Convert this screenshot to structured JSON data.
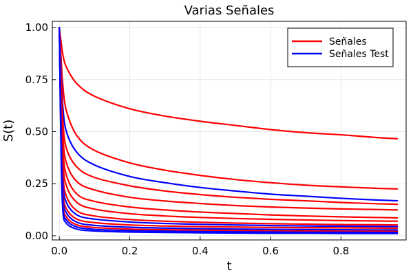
{
  "chart_data": {
    "type": "line",
    "title": "Varias Señales",
    "xlabel": "t",
    "ylabel": "S(t)",
    "xlim": [
      -0.02,
      0.985
    ],
    "ylim": [
      -0.02,
      1.03
    ],
    "xticks": [
      0.0,
      0.2,
      0.4,
      0.6,
      0.8
    ],
    "xtick_labels": [
      "0.0",
      "0.2",
      "0.4",
      "0.6",
      "0.8"
    ],
    "yticks": [
      0.0,
      0.25,
      0.5,
      0.75,
      1.0
    ],
    "ytick_labels": [
      "0.00",
      "0.25",
      "0.50",
      "0.75",
      "1.00"
    ],
    "grid": true,
    "legend_position": "top-right",
    "legend": [
      {
        "label": "Señales",
        "color": "#ff0000"
      },
      {
        "label": "Señales Test",
        "color": "#0000ff"
      }
    ],
    "x": [
      0.0,
      0.005,
      0.01,
      0.02,
      0.05,
      0.1,
      0.2,
      0.3,
      0.4,
      0.5,
      0.6,
      0.7,
      0.8,
      0.9,
      0.96
    ],
    "series": [
      {
        "name": "Señales",
        "color": "#ff0000",
        "values": [
          1.0,
          0.93,
          0.87,
          0.81,
          0.73,
          0.67,
          0.61,
          0.575,
          0.55,
          0.53,
          0.51,
          0.495,
          0.485,
          0.472,
          0.466
        ]
      },
      {
        "name": "Señales",
        "color": "#ff0000",
        "values": [
          1.0,
          0.85,
          0.72,
          0.6,
          0.48,
          0.41,
          0.35,
          0.315,
          0.29,
          0.27,
          0.255,
          0.243,
          0.235,
          0.228,
          0.225
        ]
      },
      {
        "name": "Señales Test",
        "color": "#0000ff",
        "values": [
          1.0,
          0.8,
          0.62,
          0.5,
          0.4,
          0.34,
          0.285,
          0.255,
          0.232,
          0.215,
          0.2,
          0.19,
          0.18,
          0.172,
          0.168
        ]
      },
      {
        "name": "Señales",
        "color": "#ff0000",
        "values": [
          1.0,
          0.76,
          0.55,
          0.42,
          0.33,
          0.28,
          0.24,
          0.215,
          0.198,
          0.185,
          0.175,
          0.168,
          0.16,
          0.154,
          0.151
        ]
      },
      {
        "name": "Señales",
        "color": "#ff0000",
        "values": [
          1.0,
          0.72,
          0.48,
          0.35,
          0.26,
          0.22,
          0.185,
          0.167,
          0.155,
          0.145,
          0.138,
          0.133,
          0.129,
          0.126,
          0.124
        ]
      },
      {
        "name": "Señales",
        "color": "#ff0000",
        "values": [
          1.0,
          0.68,
          0.42,
          0.29,
          0.2,
          0.165,
          0.138,
          0.124,
          0.114,
          0.107,
          0.1,
          0.095,
          0.091,
          0.088,
          0.086
        ]
      },
      {
        "name": "Señales",
        "color": "#ff0000",
        "values": [
          1.0,
          0.64,
          0.36,
          0.24,
          0.16,
          0.128,
          0.106,
          0.095,
          0.088,
          0.083,
          0.079,
          0.076,
          0.073,
          0.071,
          0.07
        ]
      },
      {
        "name": "Señales",
        "color": "#ff0000",
        "values": [
          1.0,
          0.6,
          0.3,
          0.19,
          0.12,
          0.095,
          0.078,
          0.07,
          0.065,
          0.061,
          0.058,
          0.056,
          0.054,
          0.053,
          0.052
        ]
      },
      {
        "name": "Señales Test",
        "color": "#0000ff",
        "values": [
          1.0,
          0.56,
          0.26,
          0.16,
          0.1,
          0.08,
          0.066,
          0.059,
          0.055,
          0.052,
          0.049,
          0.047,
          0.046,
          0.045,
          0.044
        ]
      },
      {
        "name": "Señales",
        "color": "#ff0000",
        "values": [
          1.0,
          0.52,
          0.22,
          0.13,
          0.08,
          0.063,
          0.052,
          0.047,
          0.044,
          0.042,
          0.04,
          0.039,
          0.038,
          0.037,
          0.036
        ]
      },
      {
        "name": "Señales Test",
        "color": "#0000ff",
        "values": [
          1.0,
          0.48,
          0.19,
          0.11,
          0.065,
          0.05,
          0.041,
          0.037,
          0.034,
          0.032,
          0.031,
          0.03,
          0.029,
          0.028,
          0.028
        ]
      },
      {
        "name": "Señales",
        "color": "#ff0000",
        "values": [
          1.0,
          0.45,
          0.16,
          0.09,
          0.052,
          0.04,
          0.032,
          0.029,
          0.027,
          0.025,
          0.024,
          0.023,
          0.022,
          0.022,
          0.021
        ]
      },
      {
        "name": "Señales Test",
        "color": "#0000ff",
        "values": [
          1.0,
          0.42,
          0.14,
          0.075,
          0.042,
          0.031,
          0.025,
          0.022,
          0.02,
          0.019,
          0.018,
          0.017,
          0.017,
          0.016,
          0.016
        ]
      },
      {
        "name": "Señales Test",
        "color": "#0000ff",
        "values": [
          1.0,
          0.38,
          0.12,
          0.06,
          0.032,
          0.023,
          0.018,
          0.016,
          0.014,
          0.013,
          0.012,
          0.012,
          0.011,
          0.011,
          0.011
        ]
      }
    ]
  }
}
